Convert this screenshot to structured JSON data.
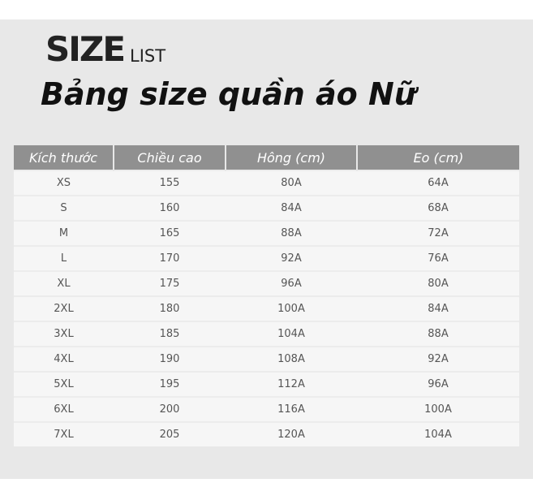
{
  "heading": {
    "big": "SIZE",
    "small": "LIST",
    "title": "Bảng size quần áo Nữ"
  },
  "table": {
    "headers": [
      "Kích thước",
      "Chiều cao",
      "Hông (cm)",
      "Eo (cm)"
    ],
    "rows": [
      [
        "XS",
        "155",
        "80A",
        "64A"
      ],
      [
        "S",
        "160",
        "84A",
        "68A"
      ],
      [
        "M",
        "165",
        "88A",
        "72A"
      ],
      [
        "L",
        "170",
        "92A",
        "76A"
      ],
      [
        "XL",
        "175",
        "96A",
        "80A"
      ],
      [
        "2XL",
        "180",
        "100A",
        "84A"
      ],
      [
        "3XL",
        "185",
        "104A",
        "88A"
      ],
      [
        "4XL",
        "190",
        "108A",
        "92A"
      ],
      [
        "5XL",
        "195",
        "112A",
        "96A"
      ],
      [
        "6XL",
        "200",
        "116A",
        "100A"
      ],
      [
        "7XL",
        "205",
        "120A",
        "104A"
      ]
    ]
  }
}
